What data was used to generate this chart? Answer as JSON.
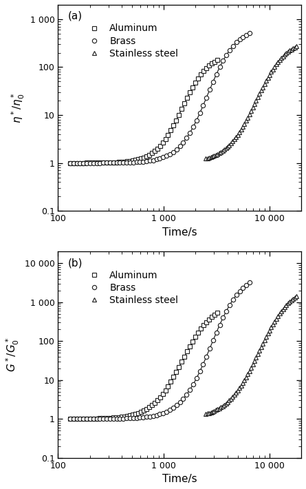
{
  "panel_a": {
    "label": "(a)",
    "ylabel": "$\\eta^*/\\eta_0^*$",
    "ylim": [
      0.1,
      2000
    ],
    "yticks": [
      0.1,
      1,
      10,
      100,
      1000
    ],
    "yticklabels": [
      "0.1",
      "1",
      "10",
      "100",
      "1 000"
    ]
  },
  "panel_b": {
    "label": "(b)",
    "ylabel": "$G^*/G_0^*$",
    "ylim": [
      0.1,
      20000
    ],
    "yticks": [
      0.1,
      1,
      10,
      100,
      1000,
      10000
    ],
    "yticklabels": [
      "0.1",
      "1",
      "10",
      "100",
      "1 000",
      "10 000"
    ]
  },
  "xlim": [
    100,
    20000
  ],
  "xticks": [
    100,
    1000,
    10000
  ],
  "xticklabels": [
    "100",
    "1 000",
    "10 000"
  ],
  "xlabel": "Time/s",
  "series": {
    "aluminum": {
      "marker": "s",
      "label": "Aluminum",
      "color": "#222222",
      "t0_a": 1500,
      "plateau_a": 200,
      "k_a": 8.0,
      "t_start_a": 130,
      "t_end_a": 3200,
      "t0_b": 1500,
      "plateau_b": 1000,
      "k_b": 7.0,
      "t_start_b": 130,
      "t_end_b": 3200
    },
    "brass": {
      "marker": "o",
      "label": "Brass",
      "color": "#222222",
      "t0_a": 2600,
      "plateau_a": 700,
      "k_a": 7.5,
      "t_start_a": 130,
      "t_end_a": 6500,
      "t0_b": 2800,
      "plateau_b": 6000,
      "k_b": 7.0,
      "t_start_b": 130,
      "t_end_b": 6500
    },
    "stainless": {
      "marker": "^",
      "label": "Stainless steel",
      "color": "#222222",
      "t0_a": 7500,
      "plateau_a": 400,
      "k_a": 7.0,
      "t_start_a": 2500,
      "t_end_a": 18000,
      "t0_b": 8000,
      "plateau_b": 3000,
      "k_b": 6.5,
      "t_start_b": 2500,
      "t_end_b": 18000
    }
  },
  "legend_fontsize": 10,
  "tick_fontsize": 9,
  "label_fontsize": 11
}
